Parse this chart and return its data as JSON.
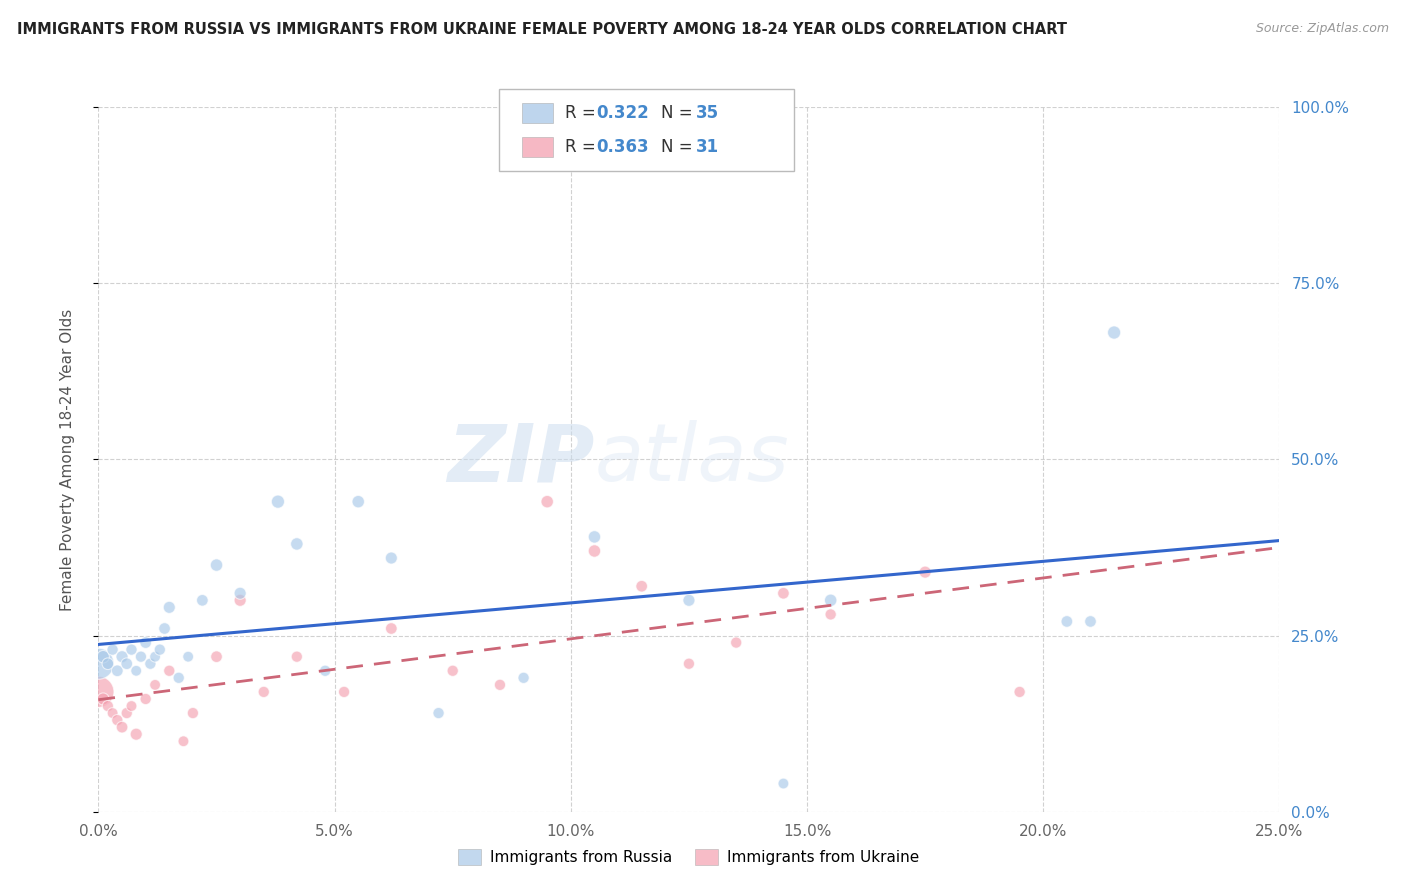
{
  "title": "IMMIGRANTS FROM RUSSIA VS IMMIGRANTS FROM UKRAINE FEMALE POVERTY AMONG 18-24 YEAR OLDS CORRELATION CHART",
  "source": "Source: ZipAtlas.com",
  "ylabel": "Female Poverty Among 18-24 Year Olds",
  "xlim": [
    0.0,
    0.25
  ],
  "ylim": [
    0.0,
    1.0
  ],
  "xticks": [
    0.0,
    0.05,
    0.1,
    0.15,
    0.2,
    0.25
  ],
  "yticks": [
    0.0,
    0.25,
    0.5,
    0.75,
    1.0
  ],
  "russia_R": 0.322,
  "russia_N": 35,
  "ukraine_R": 0.363,
  "ukraine_N": 31,
  "russia_color": "#a8c8e8",
  "ukraine_color": "#f4a0b0",
  "trend_russia_color": "#3366cc",
  "trend_ukraine_color": "#cc6677",
  "russia_x": [
    0.0,
    0.001,
    0.002,
    0.003,
    0.004,
    0.005,
    0.006,
    0.007,
    0.008,
    0.009,
    0.01,
    0.011,
    0.012,
    0.013,
    0.014,
    0.015,
    0.017,
    0.019,
    0.022,
    0.025,
    0.03,
    0.038,
    0.042,
    0.048,
    0.055,
    0.062,
    0.072,
    0.09,
    0.105,
    0.125,
    0.145,
    0.155,
    0.205,
    0.21,
    0.215
  ],
  "russia_y": [
    0.21,
    0.22,
    0.21,
    0.23,
    0.2,
    0.22,
    0.21,
    0.23,
    0.2,
    0.22,
    0.24,
    0.21,
    0.22,
    0.23,
    0.26,
    0.29,
    0.19,
    0.22,
    0.3,
    0.35,
    0.31,
    0.44,
    0.38,
    0.2,
    0.44,
    0.36,
    0.14,
    0.19,
    0.39,
    0.3,
    0.04,
    0.3,
    0.27,
    0.27,
    0.68
  ],
  "russia_sizes": [
    500,
    80,
    70,
    65,
    70,
    75,
    70,
    65,
    60,
    65,
    70,
    65,
    60,
    65,
    70,
    75,
    65,
    60,
    70,
    80,
    75,
    90,
    80,
    65,
    80,
    75,
    65,
    65,
    80,
    75,
    60,
    80,
    70,
    70,
    90
  ],
  "ukraine_x": [
    0.0,
    0.001,
    0.002,
    0.003,
    0.004,
    0.005,
    0.006,
    0.007,
    0.008,
    0.01,
    0.012,
    0.015,
    0.018,
    0.02,
    0.025,
    0.03,
    0.035,
    0.042,
    0.052,
    0.062,
    0.075,
    0.085,
    0.095,
    0.105,
    0.115,
    0.125,
    0.135,
    0.145,
    0.155,
    0.175,
    0.195
  ],
  "ukraine_y": [
    0.17,
    0.16,
    0.15,
    0.14,
    0.13,
    0.12,
    0.14,
    0.15,
    0.11,
    0.16,
    0.18,
    0.2,
    0.1,
    0.14,
    0.22,
    0.3,
    0.17,
    0.22,
    0.17,
    0.26,
    0.2,
    0.18,
    0.44,
    0.37,
    0.32,
    0.21,
    0.24,
    0.31,
    0.28,
    0.34,
    0.17
  ],
  "ukraine_sizes": [
    500,
    75,
    65,
    60,
    65,
    70,
    65,
    60,
    75,
    65,
    60,
    65,
    60,
    65,
    70,
    75,
    65,
    65,
    65,
    70,
    65,
    65,
    80,
    80,
    70,
    65,
    65,
    70,
    65,
    75,
    65
  ],
  "watermark_zip": "ZIP",
  "watermark_atlas": "atlas",
  "legend_russia": "Immigrants from Russia",
  "legend_ukraine": "Immigrants from Ukraine",
  "background_color": "#ffffff",
  "grid_color": "#cccccc",
  "right_tick_color": "#4488cc"
}
